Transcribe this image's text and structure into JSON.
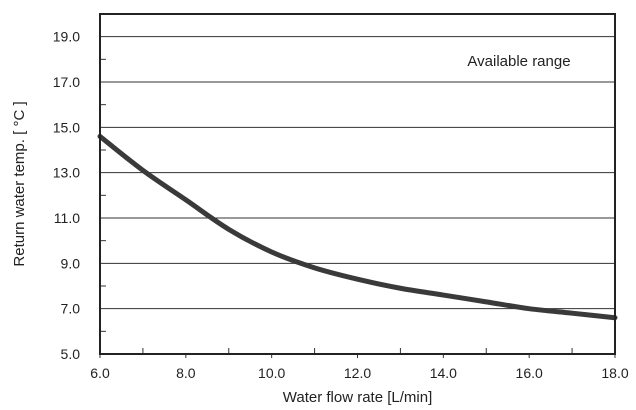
{
  "chart_data": {
    "type": "line",
    "title": "",
    "xlabel": "Water flow rate [L/min]",
    "ylabel": "Return water temp. [ °C ]",
    "xlim": [
      6.0,
      18.0
    ],
    "ylim": [
      5.0,
      20.0
    ],
    "x_ticks": [
      6.0,
      8.0,
      10.0,
      12.0,
      14.0,
      16.0,
      18.0
    ],
    "x_tick_labels": [
      "6.0",
      "8.0",
      "10.0",
      "12.0",
      "14.0",
      "16.0",
      "18.0"
    ],
    "y_ticks": [
      5.0,
      7.0,
      9.0,
      11.0,
      13.0,
      15.0,
      17.0,
      19.0
    ],
    "y_tick_labels": [
      "5.0",
      "7.0",
      "9.0",
      "11.0",
      "13.0",
      "15.0",
      "17.0",
      "19.0"
    ],
    "grid": "horizontal",
    "annotation": "Available range",
    "series": [
      {
        "x": [
          6.0,
          7.0,
          8.0,
          9.0,
          10.0,
          11.0,
          12.0,
          13.0,
          14.0,
          15.0,
          16.0,
          17.0,
          18.0
        ],
        "y": [
          14.6,
          13.1,
          11.8,
          10.5,
          9.5,
          8.8,
          8.3,
          7.9,
          7.6,
          7.3,
          7.0,
          6.8,
          6.6
        ],
        "color": "#3a3a3a"
      }
    ]
  }
}
